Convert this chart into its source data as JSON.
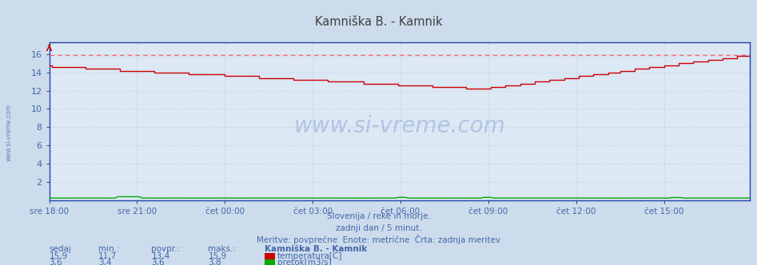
{
  "title": "Kamniška B. - Kamnik",
  "bg_color": "#ccdcec",
  "plot_bg_color": "#dce8f4",
  "grid_color": "#b8cce0",
  "grid_color_dashed": "#c8d8e8",
  "title_color": "#404040",
  "label_color": "#4466aa",
  "text_color": "#4466aa",
  "axis_color": "#2244aa",
  "ylim": [
    0,
    17.3
  ],
  "xlim": [
    0,
    287
  ],
  "yticks": [
    2,
    4,
    6,
    8,
    10,
    12,
    14,
    16
  ],
  "ytick_labels": [
    "2",
    "4",
    "6",
    "8",
    "10",
    "12",
    "14",
    "16"
  ],
  "xtick_labels": [
    "sre 18:00",
    "sre 21:00",
    "čet 00:00",
    "čet 03:00",
    "čet 06:00",
    "čet 09:00",
    "čet 12:00",
    "čet 15:00"
  ],
  "xtick_positions": [
    0,
    36,
    72,
    108,
    144,
    180,
    216,
    252
  ],
  "temp_color": "#cc0000",
  "temp_max_color": "#ff6666",
  "flow_color": "#00aa00",
  "watermark_color": "#2244aa",
  "subtitle1": "Slovenija / reke in morje.",
  "subtitle2": "zadnji dan / 5 minut.",
  "subtitle3": "Meritve: povprečne  Enote: metrične  Črta: zadnja meritev",
  "legend_title": "Kamniška B. - Kamnik",
  "legend_sedaj": "sedaj",
  "legend_min": "min.:",
  "legend_povpr": "povpr.:",
  "legend_maks": "maks.:",
  "temp_sedaj": "15,9",
  "temp_min": "11,7",
  "temp_povpr": "13,4",
  "temp_maks": "15,9",
  "flow_sedaj": "3,6",
  "flow_min": "3,4",
  "flow_povpr": "3,6",
  "flow_maks": "3,8",
  "temp_label": "temperatura[C]",
  "flow_label": "pretok[m3/s]",
  "temp_max_line": 15.9,
  "watermark": "www.si-vreme.com",
  "left_label": "www.si-vreme.com"
}
